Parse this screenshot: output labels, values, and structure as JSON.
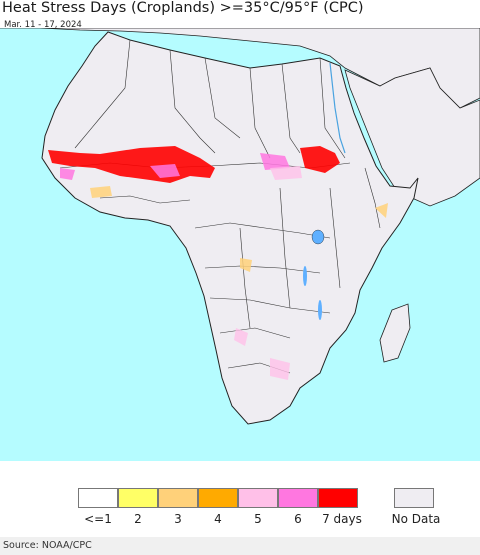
{
  "title": "Heat Stress Days (Croplands) >=35°C/95°F (CPC)",
  "subtitle": "Mar. 11 - 17, 2024",
  "source": "Source: NOAA/CPC",
  "colors": {
    "ocean": "#b5fcff",
    "land": "#efedf2",
    "border": "#222222"
  },
  "legend": {
    "items": [
      {
        "label": "<=1",
        "color": "#ffffff"
      },
      {
        "label": "2",
        "color": "#ffff66"
      },
      {
        "label": "3",
        "color": "#ffd17a"
      },
      {
        "label": "4",
        "color": "#ffaa00"
      },
      {
        "label": "5",
        "color": "#ffc0e8"
      },
      {
        "label": "6",
        "color": "#ff77e0"
      },
      {
        "label": "7 days",
        "color": "#ff0000"
      }
    ],
    "nodata": {
      "label": "No Data",
      "color": "#efedf2"
    }
  }
}
